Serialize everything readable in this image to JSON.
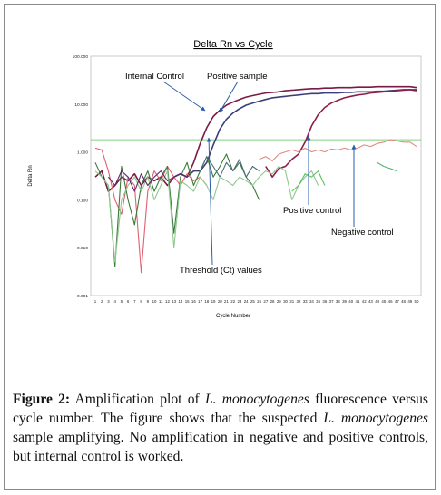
{
  "chart_data": {
    "type": "line",
    "title": "Delta Rn vs Cycle",
    "xlabel": "Cycle Number",
    "ylabel": "Delta Rn",
    "yscale": "log",
    "ylim": [
      0.001,
      100
    ],
    "yticks": [
      "100.000",
      "10.000",
      "1.000",
      "0.100",
      "0.010",
      "0.001"
    ],
    "xticks": [
      "1",
      "2",
      "3",
      "4",
      "5",
      "6",
      "7",
      "8",
      "9",
      "10",
      "11",
      "12",
      "13",
      "14",
      "15",
      "16",
      "17",
      "18",
      "19",
      "20",
      "21",
      "22",
      "23",
      "24",
      "25",
      "26",
      "27",
      "28",
      "29",
      "30",
      "31",
      "32",
      "33",
      "34",
      "35",
      "36",
      "37",
      "38",
      "39",
      "40",
      "41",
      "42",
      "43",
      "44",
      "45",
      "46",
      "47",
      "48",
      "49",
      "50"
    ],
    "threshold": 1.8,
    "series": [
      {
        "color": "#7a1a45",
        "x": [
          1,
          2,
          3,
          4,
          5,
          6,
          7,
          8,
          9,
          10,
          11,
          12,
          13,
          14,
          15,
          16,
          17,
          18,
          19,
          20,
          21,
          22,
          23,
          24,
          25,
          26,
          27,
          28,
          29,
          30,
          31,
          32,
          33,
          34,
          35,
          36,
          37,
          38,
          39,
          40,
          41,
          42,
          43,
          44,
          45,
          46,
          47,
          48,
          49,
          50
        ],
        "y": [
          0.3,
          0.4,
          0.15,
          0.2,
          0.3,
          0.25,
          0.35,
          0.2,
          0.3,
          0.25,
          0.3,
          0.2,
          0.3,
          0.35,
          0.3,
          0.6,
          1.5,
          3.2,
          5.5,
          7.5,
          9.5,
          11,
          12.5,
          14,
          15,
          16,
          17,
          17.5,
          18,
          19,
          19.5,
          20,
          20.5,
          21,
          21,
          21.5,
          21.5,
          22,
          22,
          22,
          22.5,
          22.5,
          22.5,
          23,
          23,
          23,
          23,
          23,
          23,
          22
        ]
      },
      {
        "color": "#3a3f7a",
        "x": [
          13,
          14,
          15,
          16,
          17,
          18,
          19,
          20,
          21,
          22,
          23,
          24,
          25,
          26,
          27,
          28,
          29,
          30,
          31,
          32,
          33,
          34,
          35,
          36,
          37,
          38,
          39,
          40,
          41,
          42,
          43,
          44,
          45,
          46,
          47,
          48,
          49,
          50
        ],
        "y": [
          0.3,
          0.35,
          0.3,
          0.4,
          0.4,
          0.6,
          1.4,
          3.0,
          4.8,
          6.5,
          8,
          9.5,
          10.5,
          11.5,
          12.5,
          13.5,
          14,
          14.5,
          15,
          15.5,
          16,
          16.5,
          16.5,
          17,
          17,
          17,
          17.5,
          17.5,
          18,
          18,
          18,
          18.5,
          18.5,
          19,
          19.5,
          20,
          20,
          19
        ]
      },
      {
        "color": "#8a1f4a",
        "x": [
          27,
          28,
          29,
          30,
          31,
          32,
          33,
          34,
          35,
          36,
          37,
          38,
          39,
          40,
          41,
          42,
          43,
          44,
          45,
          46,
          47,
          48,
          49,
          50
        ],
        "y": [
          0.5,
          0.3,
          0.45,
          0.5,
          0.7,
          0.9,
          1.6,
          3.5,
          6,
          8.5,
          10.5,
          12,
          13.5,
          14.5,
          15.5,
          16,
          17,
          17.5,
          18,
          18.5,
          19,
          19.5,
          20,
          20
        ]
      },
      {
        "color": "#e08a80",
        "x": [
          26,
          27,
          28,
          29,
          30,
          31,
          32,
          33,
          34,
          35,
          36,
          37,
          38,
          39,
          40,
          41,
          42,
          43,
          44,
          45,
          46,
          47,
          48,
          49,
          50
        ],
        "y": [
          0.7,
          0.8,
          0.65,
          0.9,
          1.0,
          1.1,
          1.0,
          1.2,
          1.0,
          1.1,
          1.0,
          1.15,
          1.1,
          1.2,
          1.1,
          1.2,
          1.4,
          1.3,
          1.5,
          1.6,
          1.8,
          1.7,
          1.6,
          1.6,
          1.3
        ]
      },
      {
        "color": "#e06070",
        "x": [
          1,
          2,
          3,
          4,
          5,
          6,
          7,
          8,
          9,
          10,
          11,
          12,
          13,
          14,
          15,
          16,
          17,
          18
        ],
        "y": [
          1.2,
          1.1,
          0.4,
          0.1,
          0.05,
          0.3,
          0.2,
          0.003,
          0.15,
          0.4,
          0.25,
          0.5,
          0.3,
          0.2,
          0.35,
          0.25,
          0.3,
          0.2
        ]
      },
      {
        "color": "#3a7a3a",
        "x": [
          1,
          2,
          3,
          4,
          5,
          6,
          7,
          8,
          9,
          10,
          11,
          12,
          13,
          14,
          15,
          16,
          17,
          18,
          19,
          20,
          21,
          22,
          23,
          24,
          25,
          26
        ],
        "y": [
          0.6,
          0.3,
          0.2,
          0.004,
          0.5,
          0.1,
          0.03,
          0.2,
          0.4,
          0.15,
          0.3,
          0.5,
          0.02,
          0.3,
          0.6,
          0.2,
          0.4,
          0.8,
          0.3,
          0.5,
          0.9,
          0.4,
          0.6,
          0.3,
          0.2,
          0.1
        ]
      },
      {
        "color": "#4a6a7a",
        "x": [
          17,
          18,
          19,
          20,
          21,
          22,
          23,
          24,
          25,
          26
        ],
        "y": [
          0.4,
          0.8,
          0.5,
          0.3,
          0.6,
          0.4,
          0.7,
          0.3,
          0.5,
          0.4
        ]
      },
      {
        "color": "#90c890",
        "x": [
          1,
          2,
          3,
          4,
          5,
          6,
          7,
          8,
          9,
          10,
          11,
          12,
          13,
          14,
          15,
          16,
          17,
          18,
          19,
          20,
          21,
          22,
          23,
          24,
          25,
          26,
          27,
          28,
          29,
          30,
          31,
          32,
          33,
          34,
          35
        ],
        "y": [
          0.4,
          0.3,
          0.2,
          0.005,
          0.1,
          0.2,
          0.3,
          0.15,
          0.3,
          0.1,
          0.2,
          0.4,
          0.01,
          0.25,
          0.2,
          0.15,
          0.3,
          0.2,
          0.1,
          0.3,
          0.25,
          0.2,
          0.3,
          0.25,
          0.2,
          0.3,
          0.4,
          0.35,
          0.5,
          0.4,
          0.1,
          0.2,
          0.3,
          0.4,
          0.2
        ]
      },
      {
        "color": "#60c060",
        "x": [
          31,
          32,
          33,
          34,
          35,
          36
        ],
        "y": [
          0.15,
          0.2,
          0.35,
          0.3,
          0.4,
          0.2
        ]
      },
      {
        "color": "#50b070",
        "x": [
          44,
          45,
          46,
          47
        ],
        "y": [
          0.6,
          0.5,
          0.45,
          0.4
        ]
      },
      {
        "color": "#5a2a6a",
        "x": [
          3,
          4,
          5,
          6,
          7,
          8,
          9,
          10,
          11,
          12,
          13,
          14,
          15
        ],
        "y": [
          0.3,
          0.2,
          0.4,
          0.3,
          0.15,
          0.35,
          0.2,
          0.3,
          0.4,
          0.25,
          0.3,
          0.35,
          0.3
        ]
      }
    ],
    "annotations": [
      "Internal Control",
      "Positive sample",
      "Positive control",
      "Negative control",
      "Threshold (Ct) values"
    ]
  },
  "caption": {
    "label": "Figure 2:",
    "t1": " Amplification plot of ",
    "i1": "L. monocytogenes",
    "t2": " fluorescence versus cycle number. The figure shows that the suspected ",
    "i2": "L. monocytogenes",
    "t3": " sample amplifying. No amplification in negative and positive controls, but internal control is worked."
  },
  "colors": {
    "threshold": "#7fd17f",
    "arrow": "#2b5fa8",
    "frame": "#8a8a8a"
  }
}
